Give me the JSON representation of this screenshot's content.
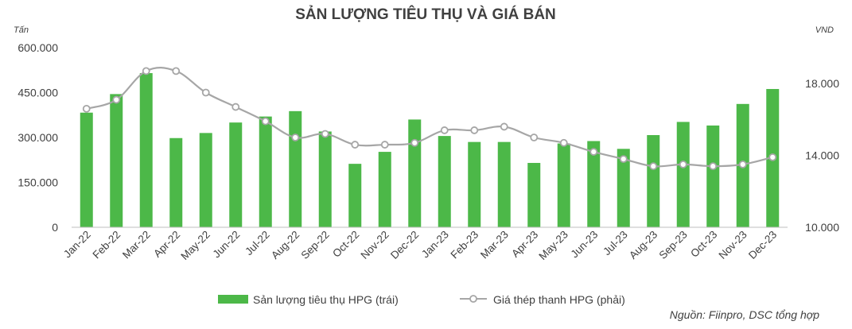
{
  "chart_data": {
    "type": "bar+line",
    "title": "SẢN LƯỢNG TIÊU THỤ VÀ GIÁ BÁN",
    "left_axis_unit": "Tấn",
    "right_axis_unit": "VND",
    "categories": [
      "Jan-22",
      "Feb-22",
      "Mar-22",
      "Apr-22",
      "May-22",
      "Jun-22",
      "Jul-22",
      "Aug-22",
      "Sep-22",
      "Oct-22",
      "Nov-22",
      "Dec-22",
      "Jan-23",
      "Feb-23",
      "Mar-23",
      "Apr-23",
      "May-23",
      "Jun-23",
      "Jul-23",
      "Aug-23",
      "Sep-23",
      "Oct-23",
      "Nov-23",
      "Dec-23"
    ],
    "series": [
      {
        "name": "Sản lượng tiêu thụ HPG (trái)",
        "type": "bar",
        "axis": "left",
        "color": "#4cb848",
        "values": [
          383000,
          445000,
          515000,
          298000,
          315000,
          350000,
          370000,
          388000,
          320000,
          212000,
          252000,
          360000,
          305000,
          285000,
          285000,
          215000,
          280000,
          288000,
          262000,
          308000,
          352000,
          340000,
          412000,
          462000
        ]
      },
      {
        "name": "Giá thép thanh HPG (phải)",
        "type": "line",
        "axis": "right",
        "color": "#a6a6a6",
        "values": [
          16600,
          17100,
          18700,
          18700,
          17500,
          16700,
          15900,
          15000,
          15200,
          14600,
          14600,
          14700,
          15400,
          15400,
          15600,
          15000,
          14700,
          14200,
          13800,
          13400,
          13500,
          13400,
          13500,
          13900
        ]
      }
    ],
    "left_axis": {
      "min": 0,
      "max": 600000,
      "ticks": [
        "0",
        "150.000",
        "300.000",
        "450.000",
        "600.000"
      ],
      "tick_values": [
        0,
        150000,
        300000,
        450000,
        600000
      ]
    },
    "right_axis": {
      "min": 10000,
      "max": 20000,
      "ticks": [
        "10.000",
        "14.000",
        "18.000"
      ],
      "tick_values": [
        10000,
        14000,
        18000
      ]
    },
    "legend_position": "bottom",
    "grid": false,
    "source_note": "Nguồn: Fiinpro, DSC tổng hợp"
  }
}
